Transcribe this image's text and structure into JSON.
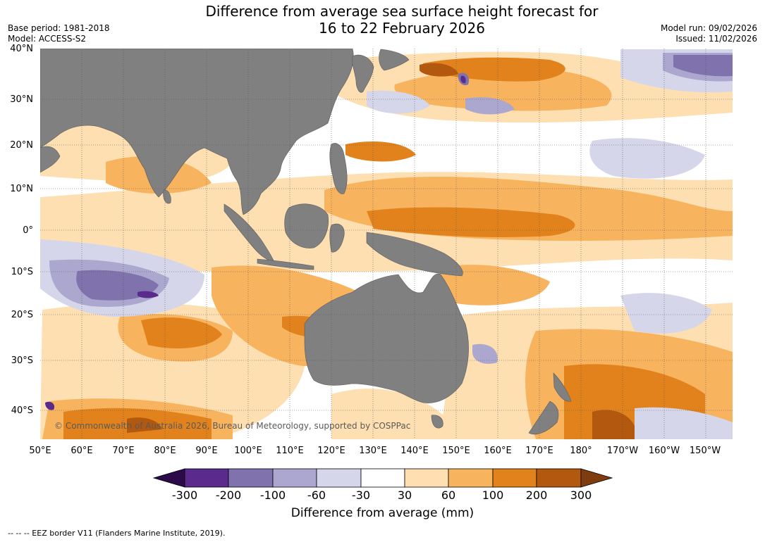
{
  "title": {
    "line1": "Difference from average sea surface height forecast for",
    "line2": "16 to 22 February 2026"
  },
  "meta": {
    "base_period": "Base period: 1981-2018",
    "model": "Model: ACCESS-S2",
    "model_run": "Model run: 09/02/2026",
    "issued": "Issued: 11/02/2026"
  },
  "axes": {
    "latitudes": [
      "40°N",
      "30°N",
      "20°N",
      "10°N",
      "0°",
      "10°S",
      "20°S",
      "30°S",
      "40°S"
    ],
    "longitudes": [
      "50°E",
      "60°E",
      "70°E",
      "80°E",
      "90°E",
      "100°E",
      "110°E",
      "120°E",
      "130°E",
      "140°E",
      "150°E",
      "160°E",
      "170°E",
      "180°",
      "170°W",
      "160°W",
      "150°W"
    ]
  },
  "copyright": "© Commonwealth of Australia 2026, Bureau of Meteorology, supported by COSPPac",
  "colorbar": {
    "title": "Difference from average (mm)",
    "ticks": [
      "-300",
      "-200",
      "-100",
      "-60",
      "-30",
      "30",
      "60",
      "100",
      "200",
      "300"
    ],
    "colors": {
      "below_min": "#2d0a4a",
      "c1": "#5a2a8c",
      "c2": "#7f72ad",
      "c3": "#aca7cf",
      "c4": "#d6d6ea",
      "neutral": "#ffffff",
      "w1": "#fddfb1",
      "w2": "#f8b35e",
      "w3": "#e2821c",
      "w4": "#b2580f",
      "above_max": "#7f3c0d",
      "land": "#808080"
    }
  },
  "footnote": "--  --  -- EEZ border V11 (Flanders Marine Institute, 2019)."
}
